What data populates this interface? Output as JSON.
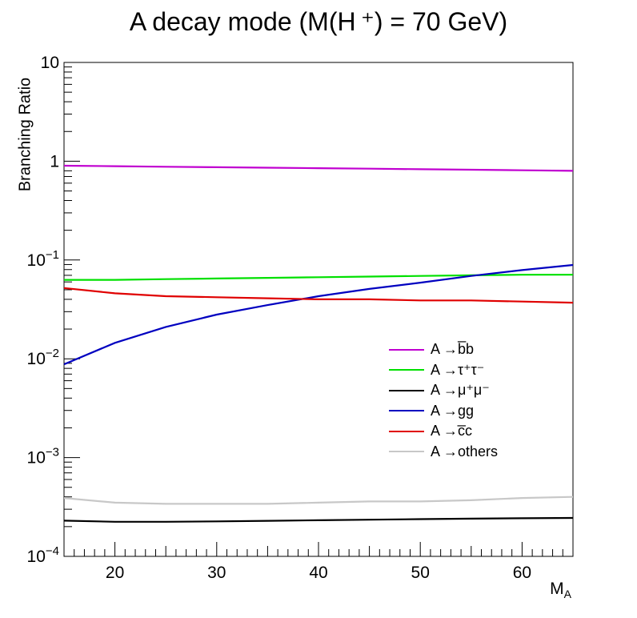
{
  "chart_data": {
    "type": "line",
    "title": "A decay mode (M(H ⁺) = 70 GeV)",
    "xlabel": "M_A",
    "xlabel_main": "M",
    "xlabel_sub": "A",
    "ylabel": "Branching Ratio",
    "xlim": [
      15,
      65
    ],
    "ylim": [
      0.0001,
      10
    ],
    "yscale": "log",
    "x_ticks": [
      20,
      30,
      40,
      50,
      60
    ],
    "x_tick_labels": [
      "20",
      "30",
      "40",
      "50",
      "60"
    ],
    "y_ticks": [
      0.0001,
      0.001,
      0.01,
      0.1,
      1,
      10
    ],
    "y_tick_labels": [
      {
        "base": "10",
        "exp": "−4"
      },
      {
        "base": "10",
        "exp": "−3"
      },
      {
        "base": "10",
        "exp": "−2"
      },
      {
        "base": "10",
        "exp": "−1"
      },
      {
        "base": "1",
        "exp": ""
      },
      {
        "base": "10",
        "exp": ""
      }
    ],
    "grid": false,
    "legend_position": "right-middle",
    "x": [
      15,
      20,
      25,
      30,
      35,
      40,
      45,
      50,
      55,
      60,
      65
    ],
    "series": [
      {
        "name": "A → b̅b",
        "color": "#c000d0",
        "values": [
          0.9,
          0.89,
          0.88,
          0.87,
          0.86,
          0.85,
          0.84,
          0.83,
          0.82,
          0.81,
          0.8
        ]
      },
      {
        "name": "A → τ⁺τ⁻",
        "color": "#00e000",
        "values": [
          0.063,
          0.063,
          0.064,
          0.065,
          0.066,
          0.067,
          0.068,
          0.069,
          0.07,
          0.071,
          0.071
        ]
      },
      {
        "name": "A → μ⁺μ⁻",
        "color": "#000000",
        "values": [
          0.00023,
          0.000224,
          0.000224,
          0.000226,
          0.000229,
          0.000232,
          0.000235,
          0.000238,
          0.000241,
          0.000243,
          0.000245
        ]
      },
      {
        "name": "A → gg",
        "color": "#0000c0",
        "values": [
          0.0088,
          0.0145,
          0.021,
          0.028,
          0.035,
          0.043,
          0.051,
          0.059,
          0.069,
          0.079,
          0.089
        ]
      },
      {
        "name": "A → c̅c",
        "color": "#e00000",
        "values": [
          0.052,
          0.046,
          0.043,
          0.042,
          0.041,
          0.04,
          0.04,
          0.039,
          0.039,
          0.038,
          0.037
        ]
      },
      {
        "name": "A → others",
        "color": "#c8c8c8",
        "values": [
          0.00039,
          0.00035,
          0.00034,
          0.00034,
          0.00034,
          0.00035,
          0.00036,
          0.00036,
          0.00037,
          0.00039,
          0.0004
        ]
      }
    ]
  },
  "legend": {
    "items": [
      {
        "prefix": "A → ",
        "text": "b̅b",
        "color": "#c000d0"
      },
      {
        "prefix": "A → ",
        "text": "τ⁺τ⁻",
        "color": "#00e000"
      },
      {
        "prefix": "A → ",
        "text": "μ⁺μ⁻",
        "color": "#000000"
      },
      {
        "prefix": "A → ",
        "text": "gg",
        "color": "#0000c0"
      },
      {
        "prefix": "A → ",
        "text": "c̅c",
        "color": "#e00000"
      },
      {
        "prefix": "A → ",
        "text": "others",
        "color": "#c8c8c8"
      }
    ]
  }
}
